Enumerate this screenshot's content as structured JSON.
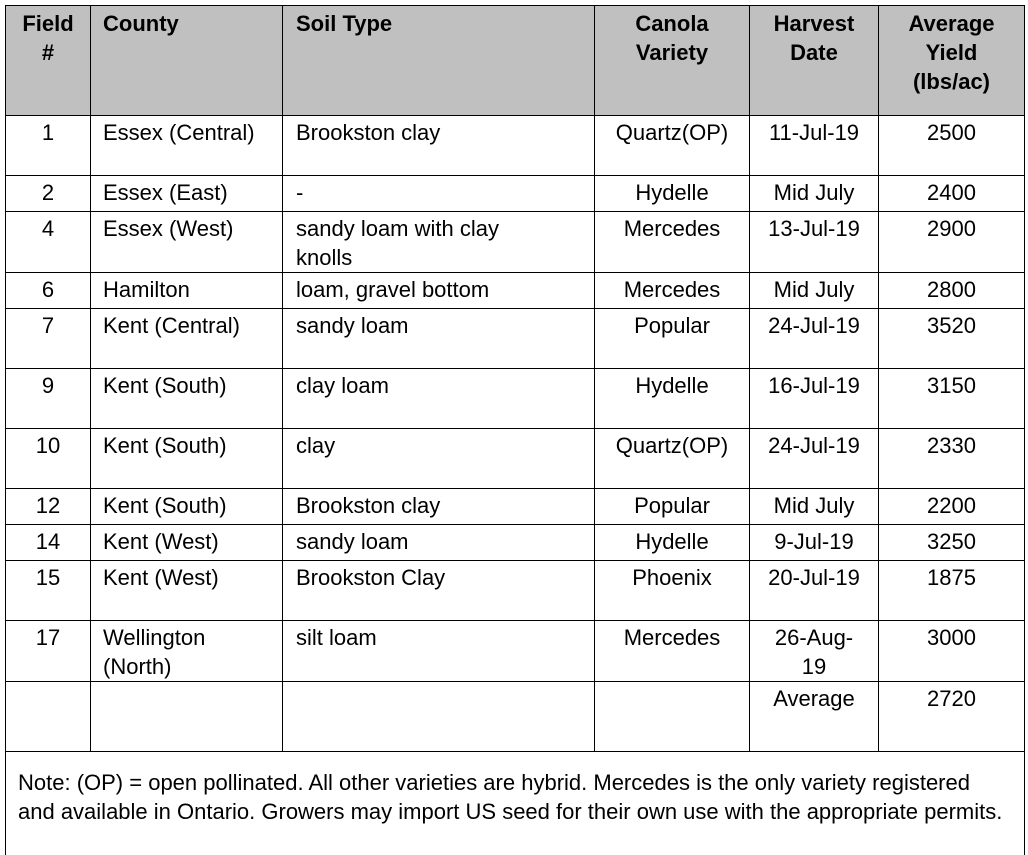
{
  "table": {
    "header": [
      "Field #",
      "County",
      "Soil Type",
      "Canola Variety",
      "Harvest Date",
      "Average Yield (lbs/ac)"
    ],
    "rows": [
      [
        "1",
        "Essex (Central)",
        "Brookston clay",
        "Quartz(OP)",
        "11-Jul-19",
        "2500"
      ],
      [
        "2",
        "Essex (East)",
        "-",
        "Hydelle",
        "Mid July",
        "2400"
      ],
      [
        "4",
        "Essex (West)",
        "sandy loam with clay knolls",
        "Mercedes",
        "13-Jul-19",
        "2900"
      ],
      [
        "6",
        "Hamilton",
        "loam, gravel bottom",
        "Mercedes",
        "Mid July",
        "2800"
      ],
      [
        "7",
        "Kent (Central)",
        "sandy loam",
        "Popular",
        "24-Jul-19",
        "3520"
      ],
      [
        "9",
        "Kent (South)",
        "clay loam",
        "Hydelle",
        "16-Jul-19",
        "3150"
      ],
      [
        "10",
        "Kent (South)",
        "clay",
        "Quartz(OP)",
        "24-Jul-19",
        "2330"
      ],
      [
        "12",
        "Kent (South)",
        "Brookston clay",
        "Popular",
        "Mid July",
        "2200"
      ],
      [
        "14",
        "Kent (West)",
        "sandy loam",
        "Hydelle",
        "9-Jul-19",
        "3250"
      ],
      [
        "15",
        "Kent (West)",
        "Brookston Clay",
        "Phoenix",
        "20-Jul-19",
        "1875"
      ],
      [
        "17",
        "Wellington (North)",
        "silt loam",
        "Mercedes",
        "26-Aug-19",
        "3000"
      ]
    ],
    "summary": {
      "label": "Average",
      "value": "2720"
    },
    "note": "Note: (OP) = open pollinated. All other varieties are hybrid. Mercedes is the only variety registered and available in Ontario. Growers may import US seed for their own use with the appropriate permits."
  }
}
